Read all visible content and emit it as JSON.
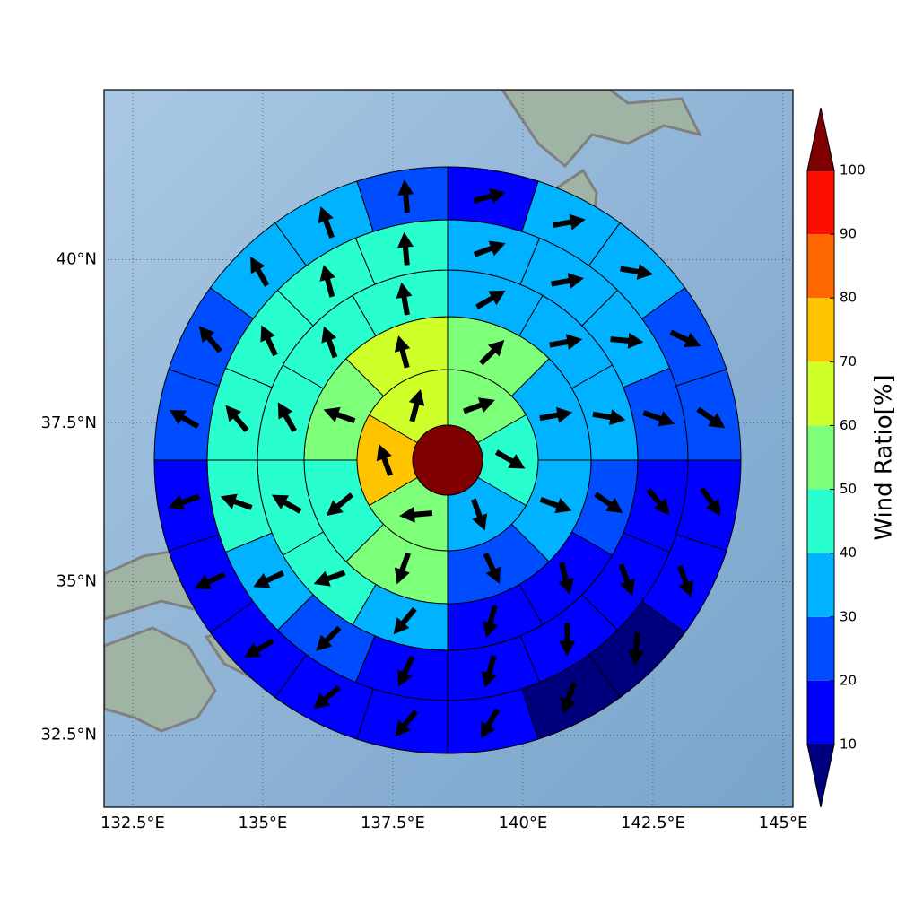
{
  "map": {
    "projection": "mercator",
    "xlim": [
      131.95,
      145.19
    ],
    "ylim": [
      31.3,
      42.5
    ],
    "grid": true,
    "xticks": [
      {
        "value": 132.5,
        "label": "132.5°E"
      },
      {
        "value": 135,
        "label": "135°E"
      },
      {
        "value": 137.5,
        "label": "137.5°E"
      },
      {
        "value": 140,
        "label": "140°E"
      },
      {
        "value": 142.5,
        "label": "142.5°E"
      },
      {
        "value": 145,
        "label": "145°E"
      }
    ],
    "yticks": [
      {
        "value": 32.5,
        "label": "32.5°N"
      },
      {
        "value": 35,
        "label": "35°N"
      },
      {
        "value": 37.5,
        "label": "37.5°N"
      },
      {
        "value": 40,
        "label": "40°N"
      }
    ]
  },
  "wind": {
    "center_value": 100,
    "rings": [
      {
        "values": [
          55,
          45,
          35,
          55,
          75,
          65
        ],
        "directions": [
          70,
          120,
          160,
          265,
          340,
          15
        ]
      },
      {
        "values": [
          55,
          35,
          35,
          25,
          55,
          45,
          55,
          65
        ],
        "directions": [
          45,
          80,
          110,
          155,
          200,
          230,
          290,
          345
        ]
      },
      {
        "values": [
          35,
          35,
          35,
          25,
          15,
          15,
          35,
          45,
          45,
          45,
          45,
          45
        ],
        "directions": [
          60,
          80,
          100,
          125,
          165,
          195,
          220,
          250,
          300,
          330,
          340,
          350
        ]
      },
      {
        "values": [
          35,
          35,
          35,
          25,
          15,
          15,
          15,
          15,
          15,
          25,
          35,
          45,
          45,
          45,
          45,
          45
        ],
        "directions": [
          70,
          80,
          95,
          110,
          140,
          160,
          180,
          195,
          205,
          225,
          245,
          290,
          320,
          335,
          345,
          355
        ]
      },
      {
        "values": [
          15,
          35,
          35,
          25,
          25,
          15,
          15,
          5,
          5,
          15,
          15,
          15,
          15,
          15,
          15,
          25,
          25,
          35,
          35,
          25
        ],
        "directions": [
          75,
          80,
          100,
          115,
          125,
          145,
          160,
          185,
          200,
          210,
          220,
          230,
          240,
          245,
          250,
          300,
          320,
          330,
          340,
          355
        ]
      }
    ]
  },
  "colorbar": {
    "label": "Wind Ratio[%]",
    "levels": [
      10,
      20,
      30,
      40,
      50,
      60,
      70,
      80,
      90,
      100
    ],
    "colors": [
      "#00007f",
      "#0000ff",
      "#004cff",
      "#00b2ff",
      "#29ffce",
      "#7dff7a",
      "#ceff29",
      "#ffc400",
      "#ff6800",
      "#ff0d00",
      "#7f0000"
    ]
  }
}
